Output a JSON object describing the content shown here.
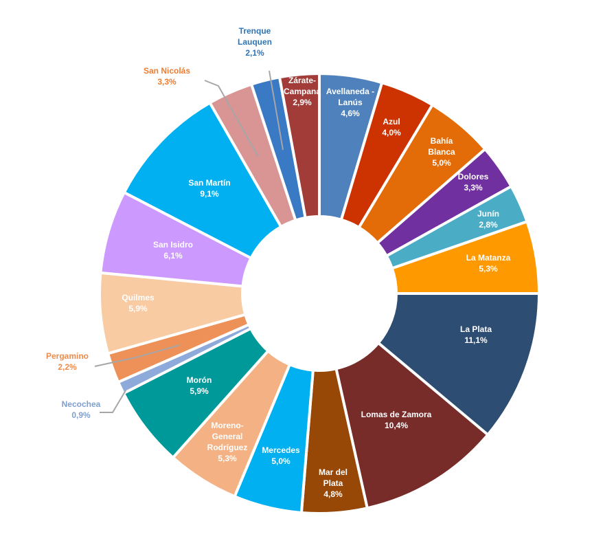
{
  "chart_data": {
    "type": "pie",
    "categories": [
      "Avellaneda - Lanús",
      "Azul",
      "Bahía Blanca",
      "Dolores",
      "Junín",
      "La Matanza",
      "La Plata",
      "Lomas de Zamora",
      "Mar del Plata",
      "Mercedes",
      "Moreno-General Rodríguez",
      "Morón",
      "Necochea",
      "Pergamino",
      "Quilmes",
      "San Isidro",
      "San Martín",
      "San Nicolás",
      "Trenque Lauquen",
      "Zárate-Campana"
    ],
    "values": [
      4.6,
      4.0,
      5.0,
      3.3,
      2.8,
      5.3,
      11.1,
      10.4,
      4.8,
      5.0,
      5.3,
      5.9,
      0.9,
      2.2,
      5.9,
      6.1,
      9.1,
      3.3,
      2.1,
      2.9
    ],
    "value_labels": [
      "4,6%",
      "4,0%",
      "5,0%",
      "3,3%",
      "2,8%",
      "5,3%",
      "11,1%",
      "10,4%",
      "4,8%",
      "5,0%",
      "5,3%",
      "5,9%",
      "0,9%",
      "2,2%",
      "5,9%",
      "6,1%",
      "9,1%",
      "3,3%",
      "2,1%",
      "2,9%"
    ],
    "display_lines": [
      [
        "Avellaneda -",
        "Lanús"
      ],
      [
        "Azul"
      ],
      [
        "Bahía",
        "Blanca"
      ],
      [
        "Dolores"
      ],
      [
        "Junín"
      ],
      [
        "La Matanza"
      ],
      [
        "La Plata"
      ],
      [
        "Lomas de Zamora"
      ],
      [
        "Mar del",
        "Plata"
      ],
      [
        "Mercedes"
      ],
      [
        "Moreno-",
        "General",
        "Rodríguez"
      ],
      [
        "Morón"
      ],
      [
        "Necochea"
      ],
      [
        "Pergamino"
      ],
      [
        "Quilmes"
      ],
      [
        "San Isidro"
      ],
      [
        "San Martín"
      ],
      [
        "San Nicolás"
      ],
      [
        "Trenque",
        "Lauquen"
      ],
      [
        "Zárate-",
        "Campana"
      ]
    ],
    "colors": [
      "#4f81bd",
      "#cc3300",
      "#e36c09",
      "#7030a0",
      "#4bacc6",
      "#ff9900",
      "#2e4d73",
      "#772c2a",
      "#974806",
      "#00b0f0",
      "#f4b183",
      "#009999",
      "#8eaadb",
      "#ed9159",
      "#f8cba3",
      "#cc99ff",
      "#00b0f0",
      "#d99594",
      "#3a7ac4",
      "#a13c38"
    ],
    "label_colors": [
      "#ffffff",
      "#ffffff",
      "#ffffff",
      "#ffffff",
      "#ffffff",
      "#ffffff",
      "#ffffff",
      "#ffffff",
      "#ffffff",
      "#ffffff",
      "#ffffff",
      "#ffffff",
      "#7f9fcf",
      "#f08a4b",
      "#ffffff",
      "#ffffff",
      "#ffffff",
      "#ed7d31",
      "#2e74b5",
      "#ffffff"
    ],
    "outside_labels": [
      "Necochea",
      "Pergamino",
      "San Nicolás",
      "Trenque Lauquen"
    ],
    "start_angle_deg": 0,
    "direction": "clockwise",
    "donut": true
  }
}
